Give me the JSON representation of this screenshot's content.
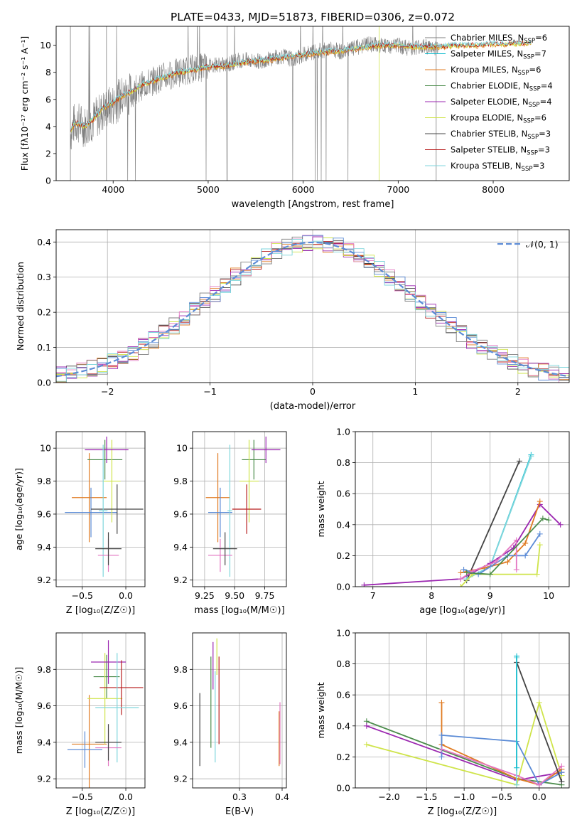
{
  "figure": {
    "title": "PLATE=0433, MJD=51873, FIBERID=0306, z=0.072"
  },
  "colors": {
    "chabrier_miles": "#7f7f7f",
    "salpeter_miles": "#17becf",
    "kroupa_miles": "#e07b22",
    "chabrier_elodie": "#4c8c4c",
    "salpeter_elodie": "#9b27b0",
    "kroupa_elodie": "#cfe44a",
    "chabrier_stelib": "#444444",
    "salpeter_stelib": "#b71c1c",
    "kroupa_stelib": "#7fd6dc",
    "pink": "#e377c2",
    "blue": "#5b8bd6",
    "gaussian": "#5b8bd6"
  },
  "chart_data": [
    {
      "id": "spectrum",
      "type": "line",
      "title": "PLATE=0433, MJD=51873, FIBERID=0306, z=0.072",
      "xlabel": "wavelength [Angstrom, rest frame]",
      "ylabel": "Flux [fλ10⁻¹⁷ erg cm⁻² s⁻¹ A⁻¹]",
      "xlim": [
        3400,
        8800
      ],
      "ylim": [
        0,
        11.4
      ],
      "xticks": [
        4000,
        5000,
        6000,
        7000,
        8000
      ],
      "yticks": [
        0,
        2,
        4,
        6,
        8,
        10
      ],
      "legend_position": "right",
      "legend": [
        "Chabrier MILES, N_SSP=6",
        "Salpeter MILES, N_SSP=7",
        "Kroupa MILES, N_SSP=6",
        "Chabrier ELODIE, N_SSP=4",
        "Salpeter ELODIE, N_SSP=4",
        "Kroupa ELODIE, N_SSP=6",
        "Chabrier STELIB, N_SSP=3",
        "Salpeter STELIB, N_SSP=3",
        "Kroupa STELIB, N_SSP=3"
      ],
      "data_x": [
        3550,
        3600,
        3700,
        3800,
        3900,
        4000,
        4100,
        4200,
        4300,
        4400,
        4500,
        4600,
        4700,
        4800,
        4900,
        5000,
        5100,
        5200,
        5300,
        5400,
        5500,
        5600,
        5700,
        5800,
        5900,
        6000,
        6100,
        6200,
        6300,
        6400,
        6500,
        6600,
        6700,
        6800,
        6900,
        7000,
        7100,
        7200,
        7300,
        7400
      ],
      "data_y": [
        3.5,
        4.4,
        4.0,
        4.5,
        5.2,
        5.6,
        6.2,
        6.5,
        7.0,
        7.3,
        7.6,
        7.8,
        8.0,
        8.2,
        8.3,
        8.5,
        8.6,
        8.5,
        8.9,
        8.9,
        8.8,
        8.9,
        9.1,
        9.2,
        8.9,
        9.3,
        9.5,
        9.6,
        9.7,
        9.5,
        9.7,
        9.9,
        10.1,
        10.0,
        9.9,
        10.0,
        9.8,
        9.9,
        9.9,
        9.8
      ],
      "model_x": [
        3550,
        3600,
        3700,
        3800,
        3900,
        4000,
        4100,
        4200,
        4300,
        4400,
        4500,
        4600,
        4700,
        4800,
        4900,
        5000,
        5200,
        5400,
        5600,
        5800,
        6000,
        6200,
        6400,
        6600,
        6800,
        7000,
        7200,
        7400,
        7600,
        7800,
        8000,
        8200,
        8400
      ],
      "model_y": [
        3.7,
        4.3,
        4.0,
        4.6,
        5.4,
        5.8,
        6.3,
        6.6,
        7.1,
        7.3,
        7.6,
        7.8,
        8.0,
        8.1,
        8.3,
        8.4,
        8.5,
        8.8,
        8.9,
        9.1,
        9.3,
        9.5,
        9.6,
        9.8,
        10.0,
        10.0,
        9.9,
        9.9,
        10.0,
        10.0,
        10.1,
        10.1,
        10.2
      ]
    },
    {
      "id": "residuals",
      "type": "line",
      "xlabel": "(data-model)/error",
      "ylabel": "Normed distribution",
      "xlim": [
        -2.5,
        2.5
      ],
      "ylim": [
        0,
        0.435
      ],
      "xticks": [
        -2,
        -1,
        0,
        1,
        2
      ],
      "yticks": [
        0.0,
        0.1,
        0.2,
        0.3,
        0.4
      ],
      "legend": [
        "𝒩(0, 1)"
      ],
      "legend_position": "top-right"
    },
    {
      "id": "age_vs_z",
      "type": "scatter",
      "xlabel": "Z [log₁₀(Z/Z☉)]",
      "ylabel": "age  [log₁₀(age/yr)]",
      "xlim": [
        -0.8,
        0.22
      ],
      "ylim": [
        9.16,
        10.1
      ],
      "xticks": [
        -0.5,
        0.0
      ],
      "xtick_labels": [
        "−0.5",
        "0.0"
      ],
      "yticks": [
        9.2,
        9.4,
        9.6,
        9.8,
        10.0
      ],
      "points": [
        {
          "x": -0.42,
          "y": 9.7,
          "xerr": 0.2,
          "yerr": 0.27,
          "color": "kroupa_miles"
        },
        {
          "x": -0.4,
          "y": 9.61,
          "xerr": 0.3,
          "yerr": 0.15,
          "color": "blue"
        },
        {
          "x": -0.24,
          "y": 9.93,
          "xerr": 0.2,
          "yerr": 0.12,
          "color": "chabrier_elodie"
        },
        {
          "x": -0.16,
          "y": 9.8,
          "xerr": 0.1,
          "yerr": 0.25,
          "color": "kroupa_elodie"
        },
        {
          "x": -0.22,
          "y": 9.99,
          "xerr": 0.25,
          "yerr": 0.08,
          "color": "salpeter_elodie"
        },
        {
          "x": -0.1,
          "y": 9.63,
          "xerr": 0.3,
          "yerr": 0.15,
          "color": "chabrier_stelib"
        },
        {
          "x": -0.26,
          "y": 9.62,
          "xerr": 0.05,
          "yerr": 0.4,
          "color": "kroupa_stelib"
        },
        {
          "x": -0.2,
          "y": 9.35,
          "xerr": 0.12,
          "yerr": 0.1,
          "color": "pink"
        },
        {
          "x": -0.2,
          "y": 9.39,
          "xerr": 0.15,
          "yerr": 0.1,
          "color": "chabrier_stelib"
        }
      ]
    },
    {
      "id": "age_vs_mass",
      "type": "scatter",
      "xlabel": "mass [log₁₀(M/M☉)]",
      "ylabel": "",
      "xlim": [
        9.15,
        9.93
      ],
      "ylim": [
        9.16,
        10.1
      ],
      "xticks": [
        9.25,
        9.5,
        9.75
      ],
      "xtick_labels": [
        "9.25",
        "9.50",
        "9.75"
      ],
      "yticks": [
        9.2,
        9.4,
        9.6,
        9.8,
        10.0
      ],
      "points": [
        {
          "x": 9.36,
          "y": 9.7,
          "xerr": 0.1,
          "yerr": 0.27,
          "color": "kroupa_miles"
        },
        {
          "x": 9.38,
          "y": 9.61,
          "xerr": 0.1,
          "yerr": 0.15,
          "color": "blue"
        },
        {
          "x": 9.66,
          "y": 9.93,
          "xerr": 0.1,
          "yerr": 0.12,
          "color": "chabrier_elodie"
        },
        {
          "x": 9.62,
          "y": 9.8,
          "xerr": 0.08,
          "yerr": 0.25,
          "color": "kroupa_elodie"
        },
        {
          "x": 9.76,
          "y": 9.99,
          "xerr": 0.12,
          "yerr": 0.08,
          "color": "salpeter_elodie"
        },
        {
          "x": 9.6,
          "y": 9.63,
          "xerr": 0.12,
          "yerr": 0.15,
          "color": "salpeter_stelib"
        },
        {
          "x": 9.46,
          "y": 9.62,
          "xerr": 0.02,
          "yerr": 0.4,
          "color": "kroupa_stelib"
        },
        {
          "x": 9.38,
          "y": 9.35,
          "xerr": 0.1,
          "yerr": 0.1,
          "color": "pink"
        },
        {
          "x": 9.42,
          "y": 9.39,
          "xerr": 0.1,
          "yerr": 0.1,
          "color": "chabrier_stelib"
        }
      ]
    },
    {
      "id": "weight_vs_age",
      "type": "line",
      "xlabel": "age  [log₁₀(age/yr)]",
      "ylabel": "mass weight",
      "xlim": [
        6.7,
        10.35
      ],
      "ylim": [
        0,
        1.0
      ],
      "xticks": [
        7,
        8,
        9,
        10
      ],
      "yticks": [
        0.0,
        0.2,
        0.4,
        0.6,
        0.8,
        1.0
      ],
      "series": [
        {
          "color": "chabrier_stelib",
          "x": [
            8.6,
            9.5
          ],
          "y": [
            0.04,
            0.81
          ]
        },
        {
          "color": "salpeter_miles",
          "x": [
            8.6,
            9.0,
            9.7
          ],
          "y": [
            0.05,
            0.13,
            0.85
          ]
        },
        {
          "color": "kroupa_stelib",
          "x": [
            8.6,
            9.0,
            9.7
          ],
          "y": [
            0.05,
            0.13,
            0.84
          ]
        },
        {
          "color": "salpeter_elodie",
          "x": [
            6.85,
            8.5,
            9.0,
            9.4,
            9.85,
            10.2
          ],
          "y": [
            0.01,
            0.05,
            0.15,
            0.25,
            0.53,
            0.4
          ]
        },
        {
          "color": "kroupa_miles",
          "x": [
            8.5,
            8.9,
            9.3,
            9.6,
            9.85
          ],
          "y": [
            0.09,
            0.12,
            0.16,
            0.28,
            0.55
          ]
        },
        {
          "color": "kroupa_elodie",
          "x": [
            8.5,
            8.7,
            9.0,
            9.8,
            9.85
          ],
          "y": [
            0.0,
            0.08,
            0.08,
            0.08,
            0.27
          ]
        },
        {
          "color": "blue",
          "x": [
            8.55,
            8.8,
            9.3,
            9.6,
            9.85
          ],
          "y": [
            0.11,
            0.08,
            0.2,
            0.2,
            0.34
          ]
        },
        {
          "color": "pink",
          "x": [
            8.5,
            8.7,
            9.1,
            9.45,
            9.45
          ],
          "y": [
            0.05,
            0.1,
            0.16,
            0.3,
            0.11
          ]
        },
        {
          "color": "chabrier_elodie",
          "x": [
            8.6,
            9.0,
            9.9,
            10.0
          ],
          "y": [
            0.09,
            0.08,
            0.44,
            0.43
          ]
        }
      ]
    },
    {
      "id": "mass_vs_z",
      "type": "scatter",
      "xlabel": "Z [log₁₀(Z/Z☉)]",
      "ylabel": "mass [log₁₀(M/M☉)]",
      "xlim": [
        -0.8,
        0.22
      ],
      "ylim": [
        9.15,
        10.0
      ],
      "xticks": [
        -0.5,
        0.0
      ],
      "xtick_labels": [
        "−0.5",
        "0.0"
      ],
      "yticks": [
        9.2,
        9.4,
        9.6,
        9.8
      ],
      "points": [
        {
          "x": -0.42,
          "y": 9.39,
          "xerr": 0.2,
          "yerr": 0.27,
          "color": "kroupa_miles"
        },
        {
          "x": -0.47,
          "y": 9.36,
          "xerr": 0.2,
          "yerr": 0.1,
          "color": "blue"
        },
        {
          "x": -0.22,
          "y": 9.76,
          "xerr": 0.15,
          "yerr": 0.12,
          "color": "chabrier_elodie"
        },
        {
          "x": -0.24,
          "y": 9.64,
          "xerr": 0.2,
          "yerr": 0.25,
          "color": "kroupa_elodie"
        },
        {
          "x": -0.2,
          "y": 9.84,
          "xerr": 0.2,
          "yerr": 0.12,
          "color": "salpeter_elodie"
        },
        {
          "x": -0.05,
          "y": 9.7,
          "xerr": 0.25,
          "yerr": 0.15,
          "color": "salpeter_stelib"
        },
        {
          "x": -0.1,
          "y": 9.59,
          "xerr": 0.25,
          "yerr": 0.3,
          "color": "kroupa_stelib"
        },
        {
          "x": -0.2,
          "y": 9.37,
          "xerr": 0.15,
          "yerr": 0.1,
          "color": "pink"
        },
        {
          "x": -0.2,
          "y": 9.4,
          "xerr": 0.15,
          "yerr": 0.1,
          "color": "chabrier_stelib"
        }
      ]
    },
    {
      "id": "mass_vs_ebv",
      "type": "scatter",
      "xlabel": "E(B-V)",
      "ylabel": "",
      "xlim": [
        0.19,
        0.41
      ],
      "ylim": [
        9.15,
        10.0
      ],
      "xticks": [
        0.3,
        0.4
      ],
      "xtick_labels": [
        "0.3",
        "0.4"
      ],
      "yticks": [
        9.2,
        9.4,
        9.6,
        9.8
      ],
      "points": [
        {
          "x": 0.207,
          "y": 9.47,
          "yerr": 0.2,
          "color": "chabrier_stelib"
        },
        {
          "x": 0.233,
          "y": 9.62,
          "yerr": 0.25,
          "color": "chabrier_elodie"
        },
        {
          "x": 0.238,
          "y": 9.82,
          "yerr": 0.13,
          "color": "salpeter_elodie"
        },
        {
          "x": 0.243,
          "y": 9.54,
          "yerr": 0.25,
          "color": "kroupa_stelib"
        },
        {
          "x": 0.247,
          "y": 9.87,
          "yerr": 0.1,
          "color": "kroupa_elodie"
        },
        {
          "x": 0.252,
          "y": 9.63,
          "yerr": 0.24,
          "color": "salpeter_stelib"
        },
        {
          "x": 0.393,
          "y": 9.42,
          "yerr": 0.15,
          "color": "kroupa_miles"
        },
        {
          "x": 0.395,
          "y": 9.45,
          "yerr": 0.17,
          "color": "pink"
        }
      ]
    },
    {
      "id": "weight_vs_z",
      "type": "line",
      "xlabel": "Z [log₁₀(Z/Z☉)]",
      "ylabel": "mass weight",
      "xlim": [
        -2.45,
        0.4
      ],
      "ylim": [
        0,
        1.0
      ],
      "xticks": [
        -2.0,
        -1.5,
        -1.0,
        -0.5,
        0.0
      ],
      "xtick_labels": [
        "−2.0",
        "−1.5",
        "−1.0",
        "−0.5",
        "0.0"
      ],
      "yticks": [
        0.0,
        0.2,
        0.4,
        0.6,
        0.8,
        1.0
      ],
      "series": [
        {
          "color": "chabrier_elodie",
          "x": [
            -2.3,
            -0.3,
            0.3
          ],
          "y": [
            0.43,
            0.06,
            0.02
          ]
        },
        {
          "color": "salpeter_elodie",
          "x": [
            -2.3,
            -0.3,
            0.3
          ],
          "y": [
            0.4,
            0.05,
            0.1
          ]
        },
        {
          "color": "kroupa_elodie",
          "x": [
            -2.3,
            -0.3,
            0.0,
            0.3
          ],
          "y": [
            0.28,
            0.02,
            0.55,
            0.08
          ]
        },
        {
          "color": "kroupa_miles",
          "x": [
            -1.3,
            -1.3,
            -0.3,
            0.0,
            0.3
          ],
          "y": [
            0.55,
            0.28,
            0.06,
            0.02,
            0.12
          ]
        },
        {
          "color": "blue",
          "x": [
            -1.3,
            -1.3,
            -0.3,
            0.0,
            0.3
          ],
          "y": [
            0.2,
            0.34,
            0.3,
            0.02,
            0.1
          ]
        },
        {
          "color": "pink",
          "x": [
            -1.3,
            -0.3,
            0.0,
            0.3
          ],
          "y": [
            0.25,
            0.08,
            0.02,
            0.14
          ]
        },
        {
          "color": "chabrier_stelib",
          "x": [
            -0.3,
            0.3
          ],
          "y": [
            0.81,
            0.04
          ]
        },
        {
          "color": "kroupa_stelib",
          "x": [
            -0.3,
            -0.3
          ],
          "y": [
            0.84,
            0.02
          ]
        },
        {
          "color": "salpeter_miles",
          "x": [
            -0.3,
            -0.3
          ],
          "y": [
            0.85,
            0.13
          ]
        }
      ]
    }
  ]
}
